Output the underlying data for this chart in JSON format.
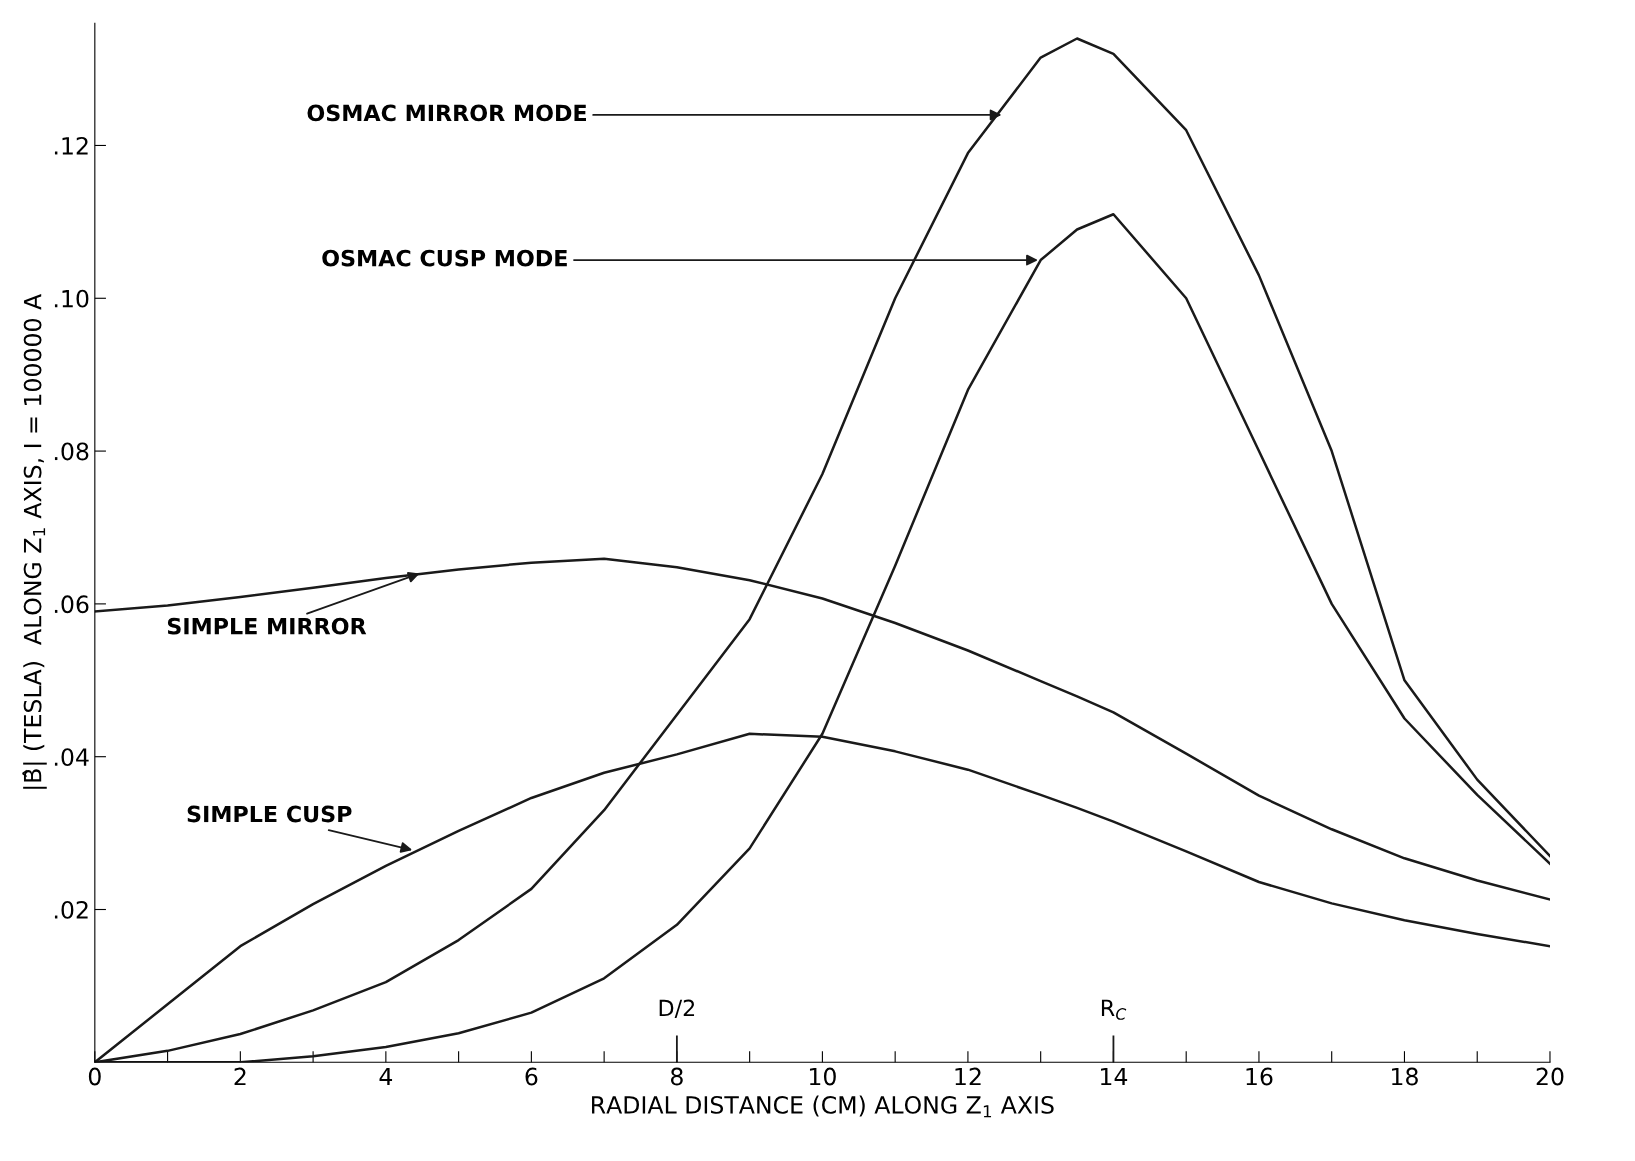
{
  "chart_data": {
    "type": "line",
    "xlabel": "RADIAL DISTANCE (CM) ALONG Z$_{1}$ AXIS",
    "ylabel": "|B̂| (TESLA)  ALONG Z$_{1}$ AXIS, I = 100000 A",
    "x": [
      0,
      1,
      2,
      3,
      4,
      5,
      6,
      7,
      8,
      9,
      10,
      11,
      12,
      13,
      13.5,
      14,
      15,
      16,
      17,
      18,
      19,
      20
    ],
    "series": [
      {
        "color": "#1a1a1a",
        "values": [
          0.059,
          0.0598,
          0.0609,
          0.0621,
          0.0634,
          0.0645,
          0.0654,
          0.0659,
          0.0648,
          0.0631,
          0.0607,
          0.0575,
          0.0539,
          0.0499,
          0.0479,
          0.0458,
          0.0404,
          0.0349,
          0.0305,
          0.0267,
          0.0238,
          0.0213
        ]
      },
      {
        "color": "#1a1a1a",
        "values": [
          0,
          0.0076,
          0.0152,
          0.0207,
          0.0257,
          0.0303,
          0.0346,
          0.0379,
          0.0403,
          0.043,
          0.0426,
          0.0407,
          0.0383,
          0.035,
          0.0333,
          0.0315,
          0.0276,
          0.0236,
          0.0208,
          0.0186,
          0.0168,
          0.0152
        ]
      },
      {
        "color": "#1a1a1a",
        "values": [
          0,
          0.0015,
          0.0037,
          0.0068,
          0.0105,
          0.016,
          0.0227,
          0.033,
          0.0455,
          0.058,
          0.077,
          0.1,
          0.119,
          0.1315,
          0.134,
          0.132,
          0.122,
          0.103,
          0.08,
          0.05,
          0.037,
          0.027
        ]
      },
      {
        "color": "#1a1a1a",
        "values": [
          0,
          0,
          0,
          0.0008,
          0.002,
          0.0038,
          0.0065,
          0.011,
          0.018,
          0.028,
          0.043,
          0.065,
          0.088,
          0.105,
          0.109,
          0.111,
          0.1,
          0.08,
          0.06,
          0.045,
          0.035,
          0.026
        ]
      }
    ],
    "xlim": [
      0,
      20
    ],
    "ylim": [
      0,
      0.136
    ],
    "xticks": [
      0,
      {
        "value": 1,
        "label": null
      },
      2,
      {
        "value": 3,
        "label": null
      },
      4,
      {
        "value": 5,
        "label": null
      },
      6,
      {
        "value": 7,
        "label": null
      },
      8,
      {
        "value": 9,
        "label": null
      },
      10,
      {
        "value": 11,
        "label": null
      },
      12,
      {
        "value": 13,
        "label": null
      },
      14,
      {
        "value": 15,
        "label": null
      },
      16,
      {
        "value": 17,
        "label": null
      },
      18,
      {
        "value": 19,
        "label": null
      },
      20
    ],
    "yticks": [
      {
        "value": 0.02,
        "label": ".02"
      },
      {
        "value": 0.04,
        "label": ".04"
      },
      {
        "value": 0.06,
        "label": ".06"
      },
      {
        "value": 0.08,
        "label": ".08"
      },
      {
        "value": 0.1,
        "label": ".10"
      },
      {
        "value": 0.12,
        "label": ".12"
      }
    ],
    "annotations": [
      {
        "text": "OSMAC MIRROR MODE",
        "x": 12.5,
        "y": 0.124
      },
      {
        "text": "OSMAC CUSP MODE",
        "x": 13.0,
        "y": 0.105
      },
      {
        "text": "SIMPLE MIRROR",
        "x": 4.5,
        "y": 0.0641
      },
      {
        "text": "SIMPLE CUSP",
        "x": 4.4,
        "y": 0.0277
      }
    ],
    "ref_lines": [
      {
        "axis": "x",
        "value": 8,
        "label": "D/2"
      },
      {
        "axis": "x",
        "value": 14,
        "label": "R$_{C}$"
      }
    ],
    "grid": false,
    "marker": "none",
    "line_style": "solid"
  }
}
